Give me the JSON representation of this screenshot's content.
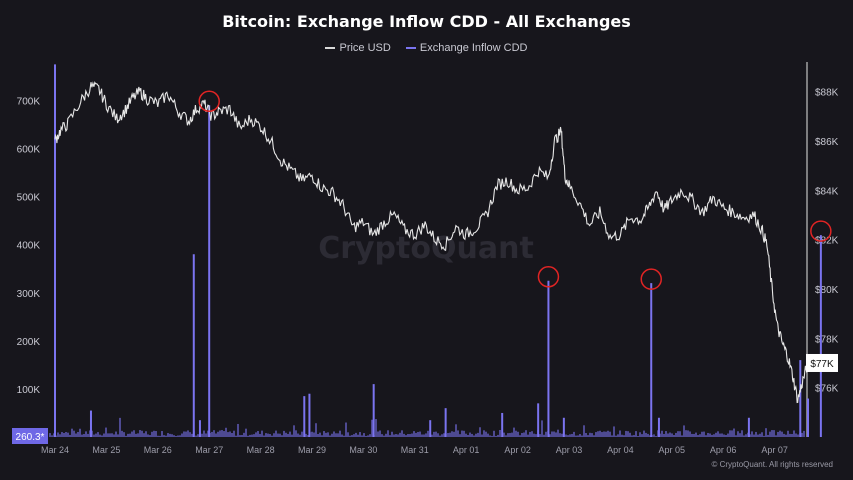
{
  "chart_data": {
    "type": "bar+line",
    "title": "Bitcoin: Exchange Inflow CDD - All Exchanges",
    "watermark": "CryptoQuant",
    "footer": "© CryptoQuant. All rights reserved",
    "x_ticks": [
      "Mar 24",
      "Mar 25",
      "Mar 26",
      "Mar 27",
      "Mar 28",
      "Mar 29",
      "Mar 30",
      "Mar 31",
      "Apr 01",
      "Apr 02",
      "Apr 03",
      "Apr 04",
      "Apr 05",
      "Apr 06",
      "Apr 07"
    ],
    "left_axis": {
      "ticks": [
        "100K",
        "200K",
        "300K",
        "400K",
        "500K",
        "600K",
        "700K"
      ],
      "values": [
        100000,
        200000,
        300000,
        400000,
        500000,
        600000,
        700000
      ],
      "range": [
        0,
        780000
      ]
    },
    "right_axis": {
      "ticks": [
        "$76K",
        "$78K",
        "$80K",
        "$82K",
        "$84K",
        "$86K",
        "$88K"
      ],
      "values": [
        76000,
        78000,
        80000,
        82000,
        84000,
        86000,
        88000
      ],
      "range": [
        74000,
        89200
      ]
    },
    "current_price_label": "$77K",
    "current_price": 77000,
    "current_cdd_label": "260.3*",
    "legend": [
      {
        "name": "Price USD",
        "color": "#d9d9d9"
      },
      {
        "name": "Exchange Inflow CDD",
        "color": "#7b74f0"
      }
    ],
    "series": [
      {
        "name": "Price USD",
        "color": "#e6e6e6",
        "points": [
          [
            0,
            86000
          ],
          [
            0.1,
            86400
          ],
          [
            0.25,
            86700
          ],
          [
            0.5,
            87600
          ],
          [
            0.7,
            88200
          ],
          [
            0.85,
            88100
          ],
          [
            1.0,
            87500
          ],
          [
            1.2,
            86900
          ],
          [
            1.35,
            87200
          ],
          [
            1.5,
            87700
          ],
          [
            1.65,
            88000
          ],
          [
            1.8,
            87700
          ],
          [
            2.0,
            87500
          ],
          [
            2.2,
            87900
          ],
          [
            2.4,
            87200
          ],
          [
            2.6,
            86800
          ],
          [
            2.75,
            87300
          ],
          [
            2.9,
            87500
          ],
          [
            3.05,
            87000
          ],
          [
            3.2,
            87200
          ],
          [
            3.4,
            87300
          ],
          [
            3.6,
            86500
          ],
          [
            3.8,
            86900
          ],
          [
            4.0,
            86600
          ],
          [
            4.2,
            86000
          ],
          [
            4.4,
            85200
          ],
          [
            4.6,
            84800
          ],
          [
            4.8,
            84400
          ],
          [
            5.0,
            84600
          ],
          [
            5.2,
            84100
          ],
          [
            5.4,
            83900
          ],
          [
            5.6,
            83400
          ],
          [
            5.8,
            82500
          ],
          [
            6.0,
            82700
          ],
          [
            6.2,
            82200
          ],
          [
            6.4,
            82700
          ],
          [
            6.6,
            83000
          ],
          [
            6.8,
            82400
          ],
          [
            7.0,
            82200
          ],
          [
            7.2,
            82600
          ],
          [
            7.4,
            82000
          ],
          [
            7.6,
            81800
          ],
          [
            7.8,
            82500
          ],
          [
            8.0,
            82200
          ],
          [
            8.2,
            82500
          ],
          [
            8.4,
            83000
          ],
          [
            8.6,
            84200
          ],
          [
            8.8,
            84400
          ],
          [
            9.0,
            84000
          ],
          [
            9.2,
            84100
          ],
          [
            9.4,
            84800
          ],
          [
            9.6,
            84500
          ],
          [
            9.72,
            86000
          ],
          [
            9.85,
            86400
          ],
          [
            9.92,
            84600
          ],
          [
            10.0,
            84200
          ],
          [
            10.2,
            83500
          ],
          [
            10.4,
            82600
          ],
          [
            10.6,
            83100
          ],
          [
            10.8,
            82100
          ],
          [
            11.0,
            82200
          ],
          [
            11.2,
            82900
          ],
          [
            11.4,
            82800
          ],
          [
            11.55,
            83300
          ],
          [
            11.7,
            84000
          ],
          [
            11.85,
            83200
          ],
          [
            12.0,
            83600
          ],
          [
            12.2,
            84000
          ],
          [
            12.4,
            83600
          ],
          [
            12.6,
            83100
          ],
          [
            12.8,
            83700
          ],
          [
            13.0,
            83300
          ],
          [
            13.2,
            83100
          ],
          [
            13.4,
            82900
          ],
          [
            13.6,
            83000
          ],
          [
            13.75,
            82400
          ],
          [
            13.85,
            81800
          ],
          [
            13.95,
            80000
          ],
          [
            14.05,
            78500
          ],
          [
            14.15,
            77800
          ],
          [
            14.25,
            77300
          ],
          [
            14.35,
            76500
          ],
          [
            14.45,
            75500
          ],
          [
            14.55,
            76300
          ],
          [
            14.65,
            77000
          ]
        ]
      },
      {
        "name": "Exchange Inflow CDD",
        "color": "#7b74f0",
        "spikes": [
          [
            0.0,
            775000
          ],
          [
            0.7,
            55000
          ],
          [
            2.7,
            380000
          ],
          [
            2.82,
            35000
          ],
          [
            3.0,
            690000
          ],
          [
            4.85,
            85000
          ],
          [
            4.95,
            90000
          ],
          [
            6.2,
            110000
          ],
          [
            7.3,
            35000
          ],
          [
            7.6,
            60000
          ],
          [
            8.7,
            50000
          ],
          [
            9.4,
            70000
          ],
          [
            9.6,
            325000
          ],
          [
            9.9,
            40000
          ],
          [
            11.6,
            320000
          ],
          [
            11.75,
            40000
          ],
          [
            13.5,
            40000
          ],
          [
            14.5,
            160000
          ],
          [
            14.65,
            80000
          ],
          [
            14.9,
            420000
          ]
        ],
        "baseline_noise": 8000
      }
    ]
  }
}
